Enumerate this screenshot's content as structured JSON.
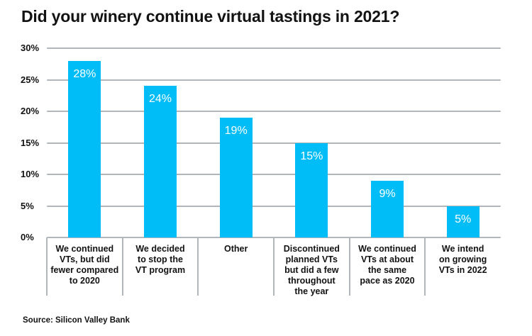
{
  "title": "Did your winery continue virtual tastings in 2021?",
  "source": "Source: Silicon Valley Bank",
  "colors": {
    "bar": "#00BCF7",
    "grid": "#B0B6BB",
    "title_text": "#121212",
    "axis_text": "#121212",
    "value_text": "#FFFFFF",
    "background": "#FFFFFF"
  },
  "chart_data": {
    "type": "bar",
    "title": "Did your winery continue virtual tastings in 2021?",
    "categories": [
      "We continued\nVTs, but did\nfewer compared\nto 2020",
      "We decided\nto stop the\nVT program",
      "Other",
      "Discontinued\nplanned VTs\nbut did a few\nthroughout\nthe year",
      "We continued\nVTs at about\nthe same\npace as 2020",
      "We intend\non growing\nVTs in 2022"
    ],
    "values": [
      28,
      24,
      19,
      15,
      9,
      5
    ],
    "value_labels": [
      "28%",
      "24%",
      "19%",
      "15%",
      "9%",
      "5%"
    ],
    "xlabel": "",
    "ylabel": "",
    "ylim": [
      0,
      30
    ],
    "ytick_step": 5,
    "yticks": [
      "0%",
      "5%",
      "10%",
      "15%",
      "20%",
      "25%",
      "30%"
    ],
    "grid": true,
    "gridlines_behind_bars": true,
    "legend": false,
    "value_label_position": "inside-top",
    "source": "Source: Silicon Valley Bank"
  }
}
